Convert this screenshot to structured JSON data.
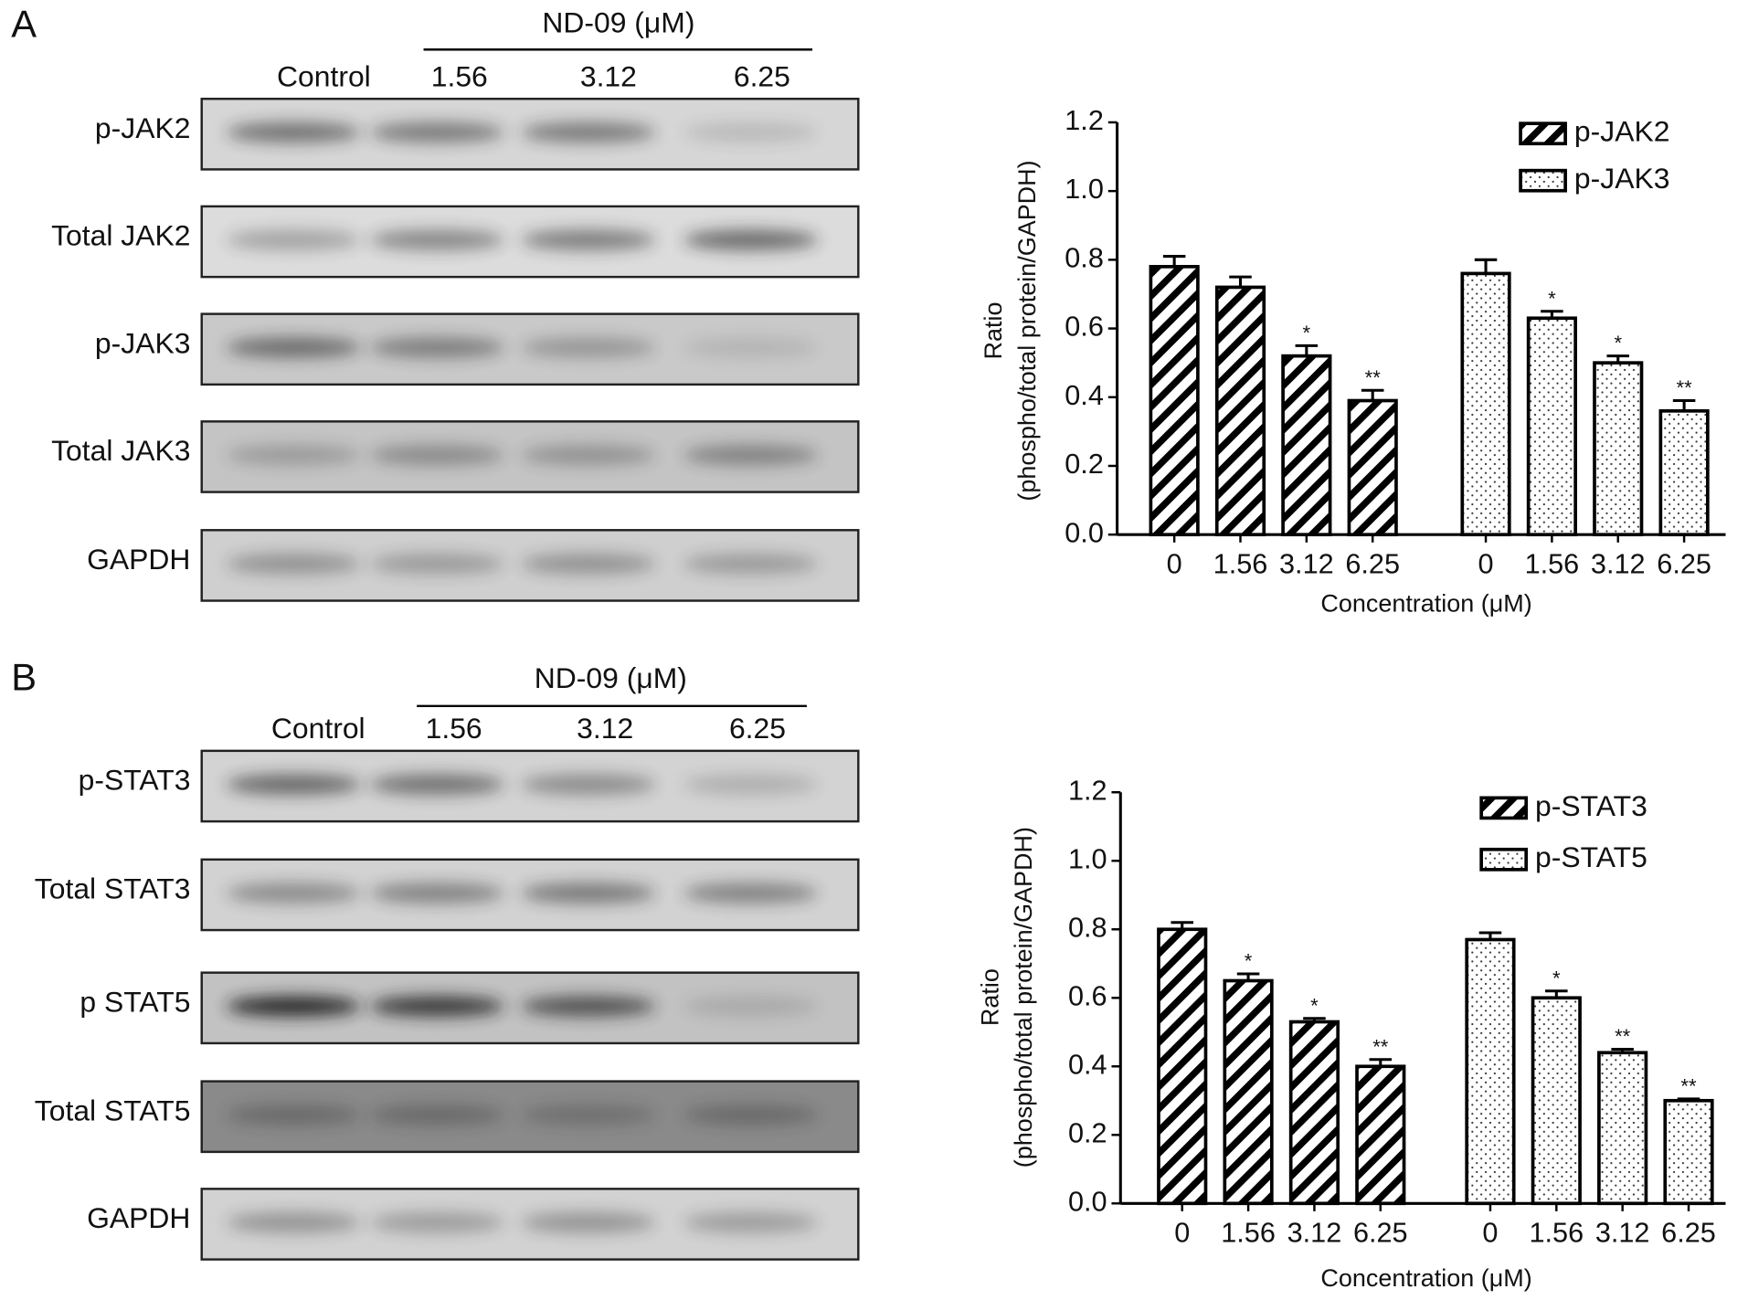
{
  "panels": [
    {
      "label": "A",
      "header": {
        "group": "ND-09 (μM)",
        "lanes": [
          "Control",
          "1.56",
          "3.12",
          "6.25"
        ]
      },
      "rows": [
        "p-JAK2",
        "Total JAK2",
        "p-JAK3",
        "Total JAK3",
        "GAPDH"
      ]
    },
    {
      "label": "B",
      "header": {
        "group": "ND-09 (μM)",
        "lanes": [
          "Control",
          "1.56",
          "3.12",
          "6.25"
        ]
      },
      "rows": [
        "p-STAT3",
        "Total STAT3",
        "p STAT5",
        "Total STAT5",
        "GAPDH"
      ]
    }
  ],
  "chart_data": [
    {
      "type": "bar",
      "ylabel": [
        "Ratio",
        "(phospho/total protein/GAPDH)"
      ],
      "xlabel": "Concentration (μM)",
      "categories": [
        "0",
        "1.56",
        "3.12",
        "6.25"
      ],
      "series": [
        {
          "name": "p-JAK2",
          "pattern": "hatch",
          "color": "#000000",
          "values": [
            0.78,
            0.72,
            0.52,
            0.39
          ],
          "errors": [
            0.03,
            0.03,
            0.03,
            0.03
          ],
          "significance": [
            null,
            null,
            "*",
            "**"
          ]
        },
        {
          "name": "p-JAK3",
          "pattern": "dots",
          "color": "#000000",
          "values": [
            0.76,
            0.63,
            0.5,
            0.36
          ],
          "errors": [
            0.04,
            0.02,
            0.02,
            0.03
          ],
          "significance": [
            null,
            "*",
            "*",
            "**"
          ]
        }
      ],
      "ylim": [
        0,
        1.2
      ],
      "yticks": [
        {
          "value": 0,
          "label": "0.0"
        },
        0.2,
        0.4,
        0.6,
        0.8,
        {
          "value": 1,
          "label": "1.0"
        },
        1.2
      ],
      "legend": "upper right"
    },
    {
      "type": "bar",
      "ylabel": [
        "Ratio",
        "(phospho/total protein/GAPDH)"
      ],
      "xlabel": "Concentration (μM)",
      "categories": [
        "0",
        "1.56",
        "3.12",
        "6.25"
      ],
      "series": [
        {
          "name": "p-STAT3",
          "pattern": "hatch",
          "color": "#000000",
          "values": [
            0.8,
            0.65,
            0.53,
            0.4
          ],
          "errors": [
            0.02,
            0.02,
            0.01,
            0.02
          ],
          "significance": [
            null,
            "*",
            "*",
            "**"
          ]
        },
        {
          "name": "p-STAT5",
          "pattern": "dots",
          "color": "#000000",
          "values": [
            0.77,
            0.6,
            0.44,
            0.3
          ],
          "errors": [
            0.02,
            0.02,
            0.01,
            0.005
          ],
          "significance": [
            null,
            "*",
            "**",
            "**"
          ]
        }
      ],
      "ylim": [
        0,
        1.2
      ],
      "yticks": [
        {
          "value": 0,
          "label": "0.0"
        },
        0.2,
        0.4,
        0.6,
        0.8,
        {
          "value": 1,
          "label": "1.0"
        },
        1.2
      ],
      "legend": "upper right"
    }
  ]
}
